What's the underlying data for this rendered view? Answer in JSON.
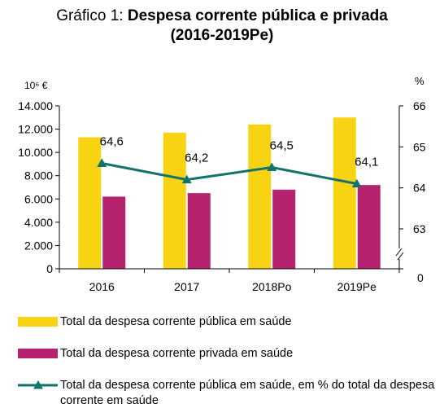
{
  "title": {
    "prefix": "Gráfico 1:",
    "main": "Despesa corrente pública e privada",
    "line2": "(2016-2019Pe)"
  },
  "chart_data": {
    "type": "bar",
    "categories": [
      "2016",
      "2017",
      "2018Po",
      "2019Pe"
    ],
    "series": [
      {
        "name": "Total da despesa corrente pública em saúde",
        "type": "bar",
        "axis": "left",
        "color": "#F7D313",
        "values": [
          11300,
          11700,
          12400,
          13000
        ]
      },
      {
        "name": "Total da despesa corrente privada em saúde",
        "type": "bar",
        "axis": "left",
        "color": "#B5236E",
        "values": [
          6200,
          6500,
          6800,
          7200
        ]
      },
      {
        "name": "Total da despesa corrente pública em saúde, em % do total da despesa corrente em saúde",
        "type": "line",
        "axis": "right",
        "color": "#12736C",
        "values": [
          64.6,
          64.2,
          64.5,
          64.1
        ],
        "labels": [
          "64,6",
          "64,2",
          "64,5",
          "64,1"
        ]
      }
    ],
    "y_left": {
      "label": "10⁶ €",
      "min": 0,
      "max": 14000,
      "step": 2000,
      "ticks": [
        "0",
        "2.000",
        "4.000",
        "6.000",
        "8.000",
        "10.000",
        "12.000",
        "14.000"
      ]
    },
    "y_right": {
      "label": "%",
      "min": 63,
      "max": 66,
      "step": 1,
      "ticks": [
        "63",
        "64",
        "65",
        "66"
      ],
      "zero_label": "0",
      "axis_break": true
    },
    "grid": false,
    "legend_position": "bottom"
  }
}
